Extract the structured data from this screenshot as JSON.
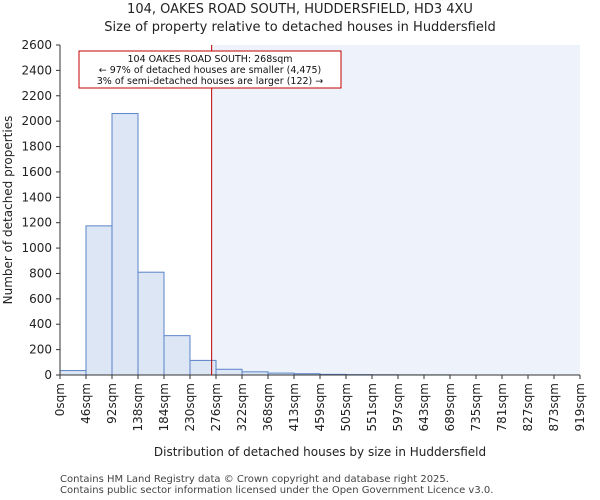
{
  "header": {
    "title": "104, OAKES ROAD SOUTH, HUDDERSFIELD, HD3 4XU",
    "subtitle": "Size of property relative to detached houses in Huddersfield"
  },
  "footer": {
    "line1": "Contains HM Land Registry data © Crown copyright and database right 2025.",
    "line2": "Contains public sector information licensed under the Open Government Licence v3.0."
  },
  "chart_data": {
    "type": "bar",
    "title": "Size of property relative to detached houses in Huddersfield",
    "xlabel": "Distribution of detached houses by size in Huddersfield",
    "ylabel": "Number of detached properties",
    "ylim": [
      0,
      2600
    ],
    "yticks": [
      0,
      200,
      400,
      600,
      800,
      1000,
      1200,
      1400,
      1600,
      1800,
      2000,
      2200,
      2400,
      2600
    ],
    "bin_edges": [
      "0sqm",
      "46sqm",
      "92sqm",
      "138sqm",
      "184sqm",
      "230sqm",
      "276sqm",
      "322sqm",
      "368sqm",
      "413sqm",
      "459sqm",
      "505sqm",
      "551sqm",
      "597sqm",
      "643sqm",
      "689sqm",
      "735sqm",
      "781sqm",
      "827sqm",
      "873sqm",
      "919sqm"
    ],
    "values": [
      35,
      1175,
      2060,
      810,
      310,
      115,
      45,
      25,
      15,
      10,
      5,
      3,
      2,
      1,
      1,
      0,
      0,
      0,
      0,
      0
    ],
    "property_marker": {
      "size_sqm": 268,
      "label_lines": [
        "104 OAKES ROAD SOUTH: 268sqm",
        "← 97% of detached houses are smaller (4,475)",
        "3% of semi-detached houses are larger (122) →"
      ]
    },
    "colors": {
      "bar_fill": "#dce6f5",
      "bar_stroke": "#5a84c8",
      "marker": "#c00000",
      "shade": "#eef2fb"
    }
  }
}
